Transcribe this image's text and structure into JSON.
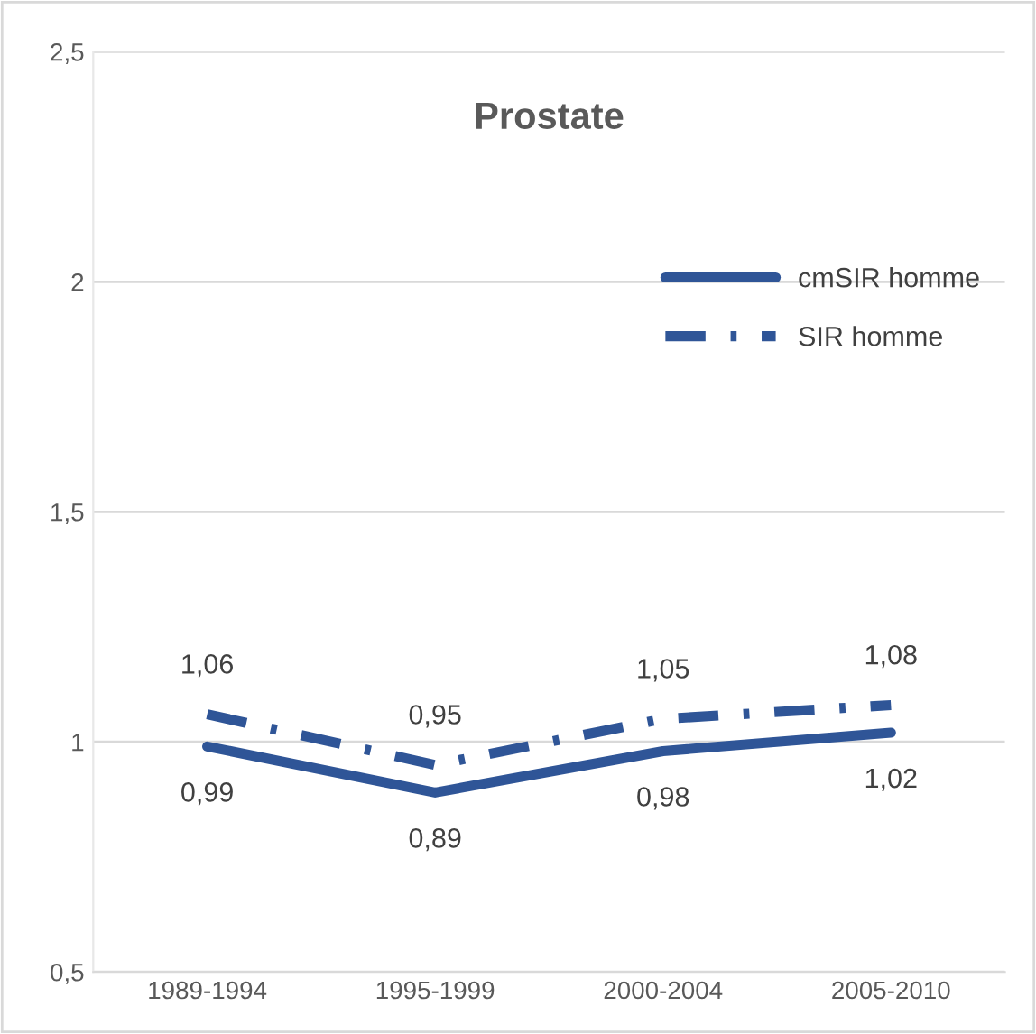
{
  "chart_data": {
    "type": "line",
    "title": "Prostate",
    "categories": [
      "1989-1994",
      "1995-1999",
      "2000-2004",
      "2005-2010"
    ],
    "series": [
      {
        "name": "cmSIR homme",
        "color": "#2f5597",
        "values": [
          0.99,
          0.89,
          0.98,
          1.02
        ],
        "value_labels": [
          "0,99",
          "0,89",
          "0,98",
          "1,02"
        ],
        "line_style": "solid"
      },
      {
        "name": "SIR homme",
        "color": "#2f5597",
        "values": [
          1.06,
          0.95,
          1.05,
          1.08
        ],
        "value_labels": [
          "1,06",
          "0,95",
          "1,05",
          "1,08"
        ],
        "line_style": "dashed"
      }
    ],
    "ylim": [
      0.5,
      2.5
    ],
    "yticks": [
      {
        "value": 0.5,
        "label": "0,5"
      },
      1,
      {
        "value": 1.5,
        "label": "1,5"
      },
      2,
      {
        "value": 2.5,
        "label": "2,5"
      }
    ],
    "grid": "y",
    "legend": "right",
    "marker": "none"
  }
}
